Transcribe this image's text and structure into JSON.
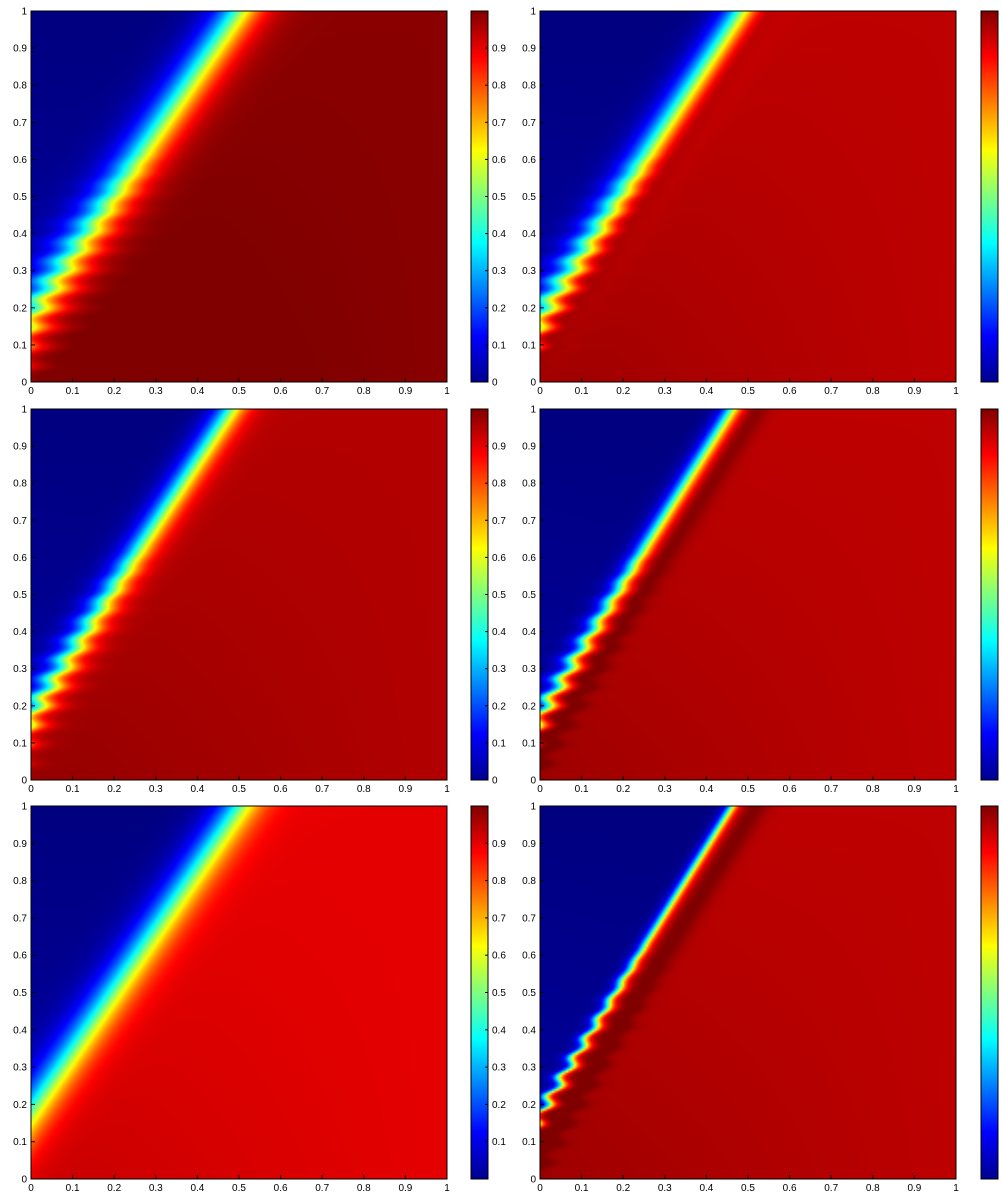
{
  "chart_data": [
    {
      "type": "heatmap",
      "xlim": [
        0,
        1
      ],
      "ylim": [
        0,
        1
      ],
      "x_ticks": [
        "0",
        "0.1",
        "0.2",
        "0.3",
        "0.4",
        "0.5",
        "0.6",
        "0.7",
        "0.8",
        "0.9",
        "1"
      ],
      "y_ticks": [
        "0",
        "0.1",
        "0.2",
        "0.3",
        "0.4",
        "0.5",
        "0.6",
        "0.7",
        "0.8",
        "0.9",
        "1"
      ],
      "colorbar_ticks": [
        "0",
        "0.1",
        "0.2",
        "0.3",
        "0.4",
        "0.5",
        "0.6",
        "0.7",
        "0.8",
        "0.9"
      ],
      "colormap": "jet",
      "clim": [
        0,
        1
      ],
      "field": {
        "front_line": {
          "x0": 0,
          "y0": 0.18,
          "x1": 0.5,
          "y1": 1.0
        },
        "front_width": 0.06,
        "left_value": 0.0,
        "right_value": 0.99,
        "ripples": true,
        "overshoot": false
      }
    },
    {
      "type": "heatmap",
      "xlim": [
        0,
        1
      ],
      "ylim": [
        0,
        1
      ],
      "x_ticks": [
        "0",
        "0.1",
        "0.2",
        "0.3",
        "0.4",
        "0.5",
        "0.6",
        "0.7",
        "0.8",
        "0.9",
        "1"
      ],
      "y_ticks": [
        "0",
        "0.1",
        "0.2",
        "0.3",
        "0.4",
        "0.5",
        "0.6",
        "0.7",
        "0.8",
        "0.9",
        "1"
      ],
      "colorbar_ticks": [],
      "colormap": "jet",
      "clim": [
        0,
        1
      ],
      "field": {
        "front_line": {
          "x0": 0,
          "y0": 0.18,
          "x1": 0.48,
          "y1": 1.0
        },
        "front_width": 0.045,
        "left_value": 0.0,
        "right_value": 0.94,
        "ripples": true,
        "overshoot": true
      }
    },
    {
      "type": "heatmap",
      "xlim": [
        0,
        1
      ],
      "ylim": [
        0,
        1
      ],
      "x_ticks": [
        "0",
        "0.1",
        "0.2",
        "0.3",
        "0.4",
        "0.5",
        "0.6",
        "0.7",
        "0.8",
        "0.9",
        "1"
      ],
      "y_ticks": [
        "0",
        "0.1",
        "0.2",
        "0.3",
        "0.4",
        "0.5",
        "0.6",
        "0.7",
        "0.8",
        "0.9",
        "1"
      ],
      "colorbar_ticks": [
        "0",
        "0.1",
        "0.2",
        "0.3",
        "0.4",
        "0.5",
        "0.6",
        "0.7",
        "0.8",
        "0.9"
      ],
      "colormap": "jet",
      "clim": [
        0,
        1
      ],
      "field": {
        "front_line": {
          "x0": 0,
          "y0": 0.18,
          "x1": 0.48,
          "y1": 1.0
        },
        "front_width": 0.04,
        "left_value": 0.0,
        "right_value": 0.95,
        "ripples": true,
        "overshoot": false
      }
    },
    {
      "type": "heatmap",
      "xlim": [
        0,
        1
      ],
      "ylim": [
        0,
        1
      ],
      "x_ticks": [
        "0",
        "0.1",
        "0.2",
        "0.3",
        "0.4",
        "0.5",
        "0.6",
        "0.7",
        "0.8",
        "0.9",
        "1"
      ],
      "y_ticks": [
        "0",
        "0.1",
        "0.2",
        "0.3",
        "0.4",
        "0.5",
        "0.6",
        "0.7",
        "0.8",
        "0.9",
        "1"
      ],
      "colorbar_ticks": [],
      "colormap": "jet",
      "clim": [
        0,
        1
      ],
      "field": {
        "front_line": {
          "x0": 0,
          "y0": 0.18,
          "x1": 0.46,
          "y1": 1.0
        },
        "front_width": 0.025,
        "left_value": 0.0,
        "right_value": 0.94,
        "ripples": true,
        "overshoot": true
      }
    },
    {
      "type": "heatmap",
      "xlim": [
        0,
        1
      ],
      "ylim": [
        0,
        1
      ],
      "x_ticks": [
        "0",
        "0.1",
        "0.2",
        "0.3",
        "0.4",
        "0.5",
        "0.6",
        "0.7",
        "0.8",
        "0.9",
        "1"
      ],
      "y_ticks": [
        "0",
        "0.1",
        "0.2",
        "0.3",
        "0.4",
        "0.5",
        "0.6",
        "0.7",
        "0.8",
        "0.9",
        "1"
      ],
      "colorbar_ticks": [
        "0.1",
        "0.2",
        "0.3",
        "0.4",
        "0.5",
        "0.6",
        "0.7",
        "0.8",
        "0.9"
      ],
      "colormap": "jet",
      "clim": [
        0,
        1
      ],
      "field": {
        "front_line": {
          "x0": 0,
          "y0": 0.18,
          "x1": 0.5,
          "y1": 1.0
        },
        "front_width": 0.055,
        "left_value": 0.0,
        "right_value": 0.9,
        "ripples": false,
        "overshoot": false
      }
    },
    {
      "type": "heatmap",
      "xlim": [
        0,
        1
      ],
      "ylim": [
        0,
        1
      ],
      "x_ticks": [
        "0",
        "0.1",
        "0.2",
        "0.3",
        "0.4",
        "0.5",
        "0.6",
        "0.7",
        "0.8",
        "0.9",
        "1"
      ],
      "y_ticks": [
        "0",
        "0.1",
        "0.2",
        "0.3",
        "0.4",
        "0.5",
        "0.6",
        "0.7",
        "0.8",
        "0.9",
        "1"
      ],
      "colorbar_ticks": [],
      "colormap": "jet",
      "clim": [
        0,
        1
      ],
      "field": {
        "front_line": {
          "x0": 0,
          "y0": 0.18,
          "x1": 0.46,
          "y1": 1.0
        },
        "front_width": 0.015,
        "left_value": 0.0,
        "right_value": 0.94,
        "ripples": true,
        "overshoot": true
      }
    }
  ]
}
